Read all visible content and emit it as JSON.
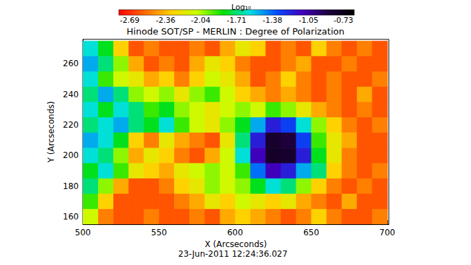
{
  "chart_data": {
    "type": "heatmap",
    "title": "Hinode SOT/SP - MERLIN : Degree of Polarization",
    "x_label": "X (Arcseconds)",
    "y_label": "Y (Arcseconds)",
    "annotation": "23-Jun-2011 12:24:36.027",
    "xlim": [
      500,
      701
    ],
    "ylim": [
      155,
      276
    ],
    "xticks": [
      500,
      550,
      600,
      650,
      700
    ],
    "yticks": [
      160,
      180,
      200,
      220,
      240,
      260
    ],
    "colorbar": {
      "label": "Log₁₀",
      "range": [
        -2.79,
        -0.63
      ],
      "ticks": [
        -2.69,
        -2.36,
        -2.04,
        -1.71,
        -1.38,
        -1.05,
        -0.73
      ]
    },
    "x": [
      505,
      515,
      525,
      535,
      545,
      555,
      565,
      575,
      585,
      595,
      605,
      615,
      625,
      635,
      645,
      655,
      665,
      675,
      685,
      695
    ],
    "y": [
      270,
      260,
      250,
      240,
      230,
      220,
      210,
      200,
      190,
      180,
      170,
      160
    ],
    "values": [
      [
        -1.6,
        -1.8,
        -2.3,
        -2.6,
        -2.5,
        -2.6,
        -2.6,
        -2.5,
        -2.6,
        -2.4,
        -2.2,
        -2.3,
        -2.6,
        -2.5,
        -2.6,
        -2.3,
        -2.5,
        -2.6,
        -2.5,
        -2.6
      ],
      [
        -1.5,
        -1.7,
        -2.0,
        -2.4,
        -2.6,
        -2.5,
        -2.6,
        -2.4,
        -2.2,
        -2.3,
        -2.5,
        -2.6,
        -2.6,
        -2.5,
        -2.4,
        -2.6,
        -2.6,
        -2.5,
        -2.6,
        -2.6
      ],
      [
        -1.6,
        -1.9,
        -2.1,
        -2.2,
        -2.4,
        -2.3,
        -2.5,
        -2.3,
        -2.1,
        -2.2,
        -2.4,
        -2.6,
        -2.5,
        -2.3,
        -2.5,
        -2.6,
        -2.5,
        -2.6,
        -2.6,
        -2.5
      ],
      [
        -1.7,
        -1.5,
        -1.7,
        -2.0,
        -2.1,
        -2.0,
        -2.2,
        -2.0,
        -1.9,
        -2.1,
        -2.3,
        -2.4,
        -2.5,
        -2.4,
        -2.5,
        -2.6,
        -2.5,
        -2.6,
        -2.4,
        -2.6
      ],
      [
        -1.6,
        -1.8,
        -1.6,
        -1.7,
        -1.9,
        -1.8,
        -2.0,
        -2.1,
        -2.2,
        -2.1,
        -2.0,
        -2.1,
        -1.9,
        -2.0,
        -2.2,
        -2.4,
        -2.5,
        -2.6,
        -2.5,
        -2.6
      ],
      [
        -1.7,
        -1.6,
        -1.5,
        -1.7,
        -1.8,
        -1.6,
        -1.9,
        -2.1,
        -2.2,
        -2.0,
        -1.8,
        -1.5,
        -1.2,
        -1.3,
        -1.6,
        -2.0,
        -2.3,
        -2.5,
        -2.6,
        -2.5
      ],
      [
        -1.5,
        -1.6,
        -1.8,
        -2.3,
        -2.5,
        -2.2,
        -2.4,
        -2.5,
        -2.6,
        -2.2,
        -1.7,
        -1.2,
        -0.8,
        -0.85,
        -1.3,
        -1.9,
        -2.2,
        -2.4,
        -2.6,
        -2.6
      ],
      [
        -1.6,
        -1.7,
        -2.0,
        -2.4,
        -2.2,
        -2.3,
        -2.5,
        -2.6,
        -2.4,
        -2.1,
        -1.6,
        -1.1,
        -0.78,
        -0.8,
        -1.2,
        -1.8,
        -2.2,
        -2.5,
        -2.6,
        -2.6
      ],
      [
        -1.8,
        -1.6,
        -1.9,
        -2.2,
        -2.3,
        -2.4,
        -2.2,
        -2.1,
        -2.0,
        -2.1,
        -1.9,
        -1.4,
        -1.1,
        -1.2,
        -1.5,
        -1.7,
        -2.3,
        -2.5,
        -2.6,
        -2.5
      ],
      [
        -1.7,
        -2.0,
        -2.4,
        -2.6,
        -2.6,
        -2.5,
        -2.3,
        -2.2,
        -2.0,
        -2.1,
        -2.0,
        -1.8,
        -1.6,
        -1.7,
        -2.0,
        -2.3,
        -2.5,
        -2.6,
        -2.5,
        -2.6
      ],
      [
        -1.9,
        -2.3,
        -2.6,
        -2.6,
        -2.6,
        -2.6,
        -2.5,
        -2.4,
        -2.2,
        -2.3,
        -2.1,
        -2.2,
        -2.3,
        -2.2,
        -2.4,
        -2.5,
        -2.6,
        -2.4,
        -2.6,
        -2.6
      ],
      [
        -2.1,
        -2.5,
        -2.6,
        -2.6,
        -2.5,
        -2.6,
        -2.6,
        -2.5,
        -2.6,
        -2.4,
        -2.3,
        -2.4,
        -2.5,
        -2.6,
        -2.5,
        -2.3,
        -2.5,
        -2.6,
        -2.6,
        -2.5
      ]
    ]
  }
}
